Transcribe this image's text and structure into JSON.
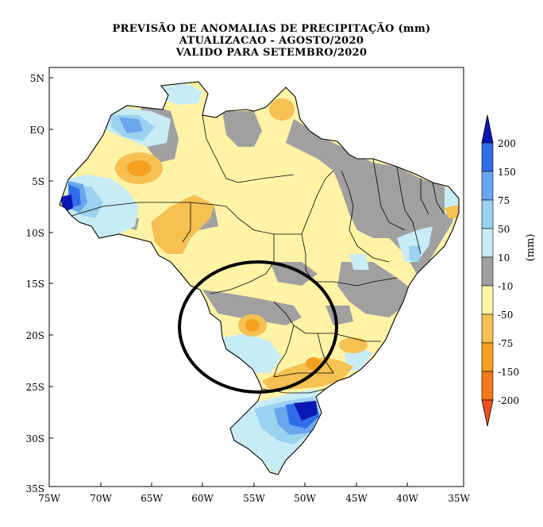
{
  "title": {
    "line1": "PREVISÃO DE ANOMALIAS DE PRECIPITAÇÃO (mm)",
    "line2": "ATUALIZACAO - AGOSTO/2020",
    "line3": "VALIDO PARA SETEMBRO/2020"
  },
  "map": {
    "lat_labels": [
      "5N",
      "EQ",
      "5S",
      "10S",
      "15S",
      "20S",
      "25S",
      "30S",
      "35S"
    ],
    "lon_labels": [
      "75W",
      "70W",
      "65W",
      "60W",
      "55W",
      "50W",
      "45W",
      "40W",
      "35W"
    ],
    "extent": {
      "lon": [
        -75,
        -35
      ],
      "lat": [
        -35,
        5
      ]
    },
    "highlight": "ellipse over Mato Grosso do Sul / west Paraná"
  },
  "legend": {
    "unit": "(mm)",
    "labels": [
      "200",
      "150",
      "75",
      "50",
      "10",
      "-10",
      "-50",
      "-75",
      "-150",
      "-200"
    ],
    "colors": [
      "#0a17b4",
      "#2f6ee8",
      "#6aa6ee",
      "#9ad2f0",
      "#c8ecf6",
      "#a0a0a0",
      "#fff3a6",
      "#f6c052",
      "#f6a020",
      "#f47818",
      "#f0501e"
    ]
  },
  "colors": {
    "gray": "#a0a0a0",
    "dry_light": "#fff3a6",
    "dry_mid": "#f6c052",
    "dry_strong": "#f6a020",
    "wet_light": "#c8ecf6",
    "wet_mid": "#9ad2f0",
    "wet_blue": "#6aa6ee",
    "wet_strong": "#2f6ee8",
    "wet_max": "#0a17b4"
  }
}
